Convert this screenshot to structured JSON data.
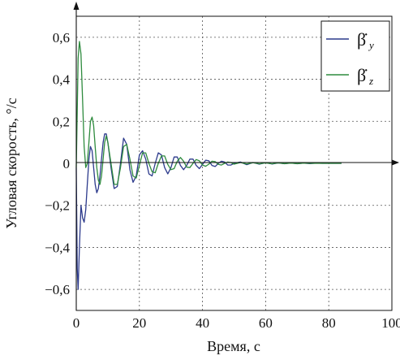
{
  "chart_data": {
    "type": "line",
    "xlabel": "Время, с",
    "ylabel": "Угловая скорость, °/с",
    "xlim": [
      0,
      100
    ],
    "ylim": [
      -0.7,
      0.7
    ],
    "xticks": [
      {
        "value": 0,
        "label": "0"
      },
      {
        "value": 20,
        "label": "20"
      },
      {
        "value": 40,
        "label": "40"
      },
      {
        "value": 60,
        "label": "60"
      },
      {
        "value": 80,
        "label": "80"
      },
      {
        "value": 100,
        "label": "100"
      }
    ],
    "yticks": [
      {
        "value": -0.6,
        "label": "−0,6"
      },
      {
        "value": -0.4,
        "label": "−0,4"
      },
      {
        "value": -0.2,
        "label": "−0,2"
      },
      {
        "value": 0,
        "label": "0"
      },
      {
        "value": 0.2,
        "label": "0,2"
      },
      {
        "value": 0.4,
        "label": "0,4"
      },
      {
        "value": 0.6,
        "label": "0,6"
      }
    ],
    "grid": true,
    "legend_position": "top-right",
    "series": [
      {
        "name": "β̇y",
        "legend_base": "β̇",
        "legend_sub": "y",
        "color": "#2c3a8c",
        "x": [
          0,
          0.3,
          0.6,
          1.0,
          1.5,
          2.0,
          2.5,
          3.0,
          3.5,
          4.0,
          4.5,
          5.0,
          5.5,
          6.0,
          6.5,
          7.0,
          7.5,
          8.0,
          8.5,
          9.0,
          9.5,
          10.0,
          11,
          12,
          13,
          14,
          15,
          16,
          17,
          18,
          19,
          20,
          21,
          22,
          23,
          24,
          25,
          26,
          27,
          28,
          29,
          30,
          31,
          32,
          33,
          34,
          35,
          36,
          37,
          38,
          39,
          40,
          41,
          42,
          43,
          44,
          45,
          46,
          47,
          48,
          49,
          50,
          52,
          54,
          56,
          58,
          60,
          62,
          64,
          66,
          68,
          70,
          72,
          74,
          76,
          78,
          80,
          82,
          84
        ],
        "values": [
          -0.02,
          -0.5,
          -0.6,
          -0.4,
          -0.2,
          -0.26,
          -0.28,
          -0.22,
          -0.1,
          0.02,
          0.08,
          0.06,
          -0.02,
          -0.1,
          -0.14,
          -0.12,
          -0.06,
          0.02,
          0.1,
          0.14,
          0.14,
          0.1,
          -0.02,
          -0.12,
          -0.11,
          0.0,
          0.12,
          0.09,
          -0.03,
          -0.09,
          -0.06,
          0.04,
          0.06,
          0.02,
          -0.05,
          -0.06,
          0.0,
          0.05,
          0.04,
          -0.02,
          -0.05,
          -0.02,
          0.03,
          0.03,
          -0.01,
          -0.03,
          -0.01,
          0.02,
          0.02,
          -0.01,
          -0.025,
          -0.005,
          0.015,
          0.012,
          -0.01,
          -0.015,
          0.0,
          0.01,
          0.006,
          -0.008,
          -0.008,
          0.0,
          0.006,
          -0.006,
          0.004,
          -0.004,
          0.003,
          -0.003,
          0.002,
          -0.002,
          0.002,
          -0.002,
          0.001,
          -0.001,
          0.001,
          0.0,
          0.0,
          0.0,
          0.0
        ]
      },
      {
        "name": "β̇z",
        "legend_base": "β̇",
        "legend_sub": "z",
        "color": "#2e8b3e",
        "x": [
          0,
          0.3,
          0.6,
          1.0,
          1.5,
          2.0,
          2.5,
          3.0,
          3.5,
          4.0,
          4.5,
          5.0,
          5.5,
          6.0,
          6.5,
          7.0,
          7.5,
          8.0,
          8.5,
          9.0,
          9.5,
          10.0,
          11,
          12,
          13,
          14,
          15,
          16,
          17,
          18,
          19,
          20,
          21,
          22,
          23,
          24,
          25,
          26,
          27,
          28,
          29,
          30,
          31,
          32,
          33,
          34,
          35,
          36,
          37,
          38,
          39,
          40,
          41,
          42,
          43,
          44,
          45,
          46,
          47,
          48,
          49,
          50,
          52,
          54,
          56,
          58,
          60,
          62,
          64,
          66,
          68,
          70,
          72,
          74,
          76,
          78,
          80,
          82,
          84
        ],
        "values": [
          -0.02,
          0.25,
          0.5,
          0.58,
          0.52,
          0.3,
          0.08,
          -0.02,
          0.0,
          0.1,
          0.2,
          0.22,
          0.18,
          0.08,
          -0.02,
          -0.08,
          -0.1,
          -0.06,
          0.02,
          0.1,
          0.13,
          0.1,
          0.0,
          -0.1,
          -0.1,
          -0.02,
          0.08,
          0.09,
          0.02,
          -0.06,
          -0.07,
          -0.01,
          0.05,
          0.05,
          0.0,
          -0.04,
          -0.045,
          0.0,
          0.035,
          0.035,
          -0.005,
          -0.03,
          -0.025,
          0.01,
          0.028,
          0.01,
          -0.018,
          -0.02,
          0.0,
          0.018,
          0.012,
          -0.008,
          -0.014,
          -0.004,
          0.01,
          0.008,
          -0.005,
          -0.008,
          0.0,
          0.006,
          0.004,
          -0.004,
          0.004,
          -0.003,
          0.003,
          -0.002,
          0.002,
          -0.002,
          0.002,
          -0.001,
          0.001,
          -0.001,
          0.001,
          0.0,
          0.0,
          0.0,
          0.0,
          0.0,
          0.0
        ]
      }
    ]
  }
}
